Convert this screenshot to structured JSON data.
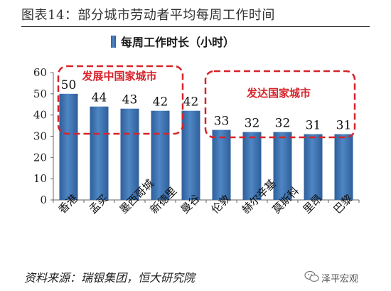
{
  "figure_title": "图表14：部分城市劳动者平均每周工作时间",
  "source": "资料来源：瑞银集团，恒大研究院",
  "watermark": "泽平宏观",
  "colors": {
    "bar": "#4f86c4",
    "bar_dark": "#2e5f9a",
    "annotation": "#d8232a",
    "axis": "#666666"
  },
  "icons": [
    "wechat-icon"
  ],
  "chart_data": {
    "type": "bar",
    "categories": [
      "香港",
      "孟买",
      "墨西哥城",
      "新德里",
      "曼谷",
      "伦敦",
      "赫尔辛基",
      "莫斯科",
      "里昂",
      "巴黎"
    ],
    "series": [
      {
        "name": "每周工作时长（小时）",
        "values": [
          50,
          44,
          43,
          42,
          42,
          33,
          32,
          32,
          31,
          31
        ]
      }
    ],
    "ylim": [
      0,
      60
    ],
    "yticks": [
      0,
      10,
      20,
      30,
      40,
      50,
      60
    ],
    "legend_position": "top",
    "grid": false,
    "data_labels": true,
    "annotations": [
      {
        "text": "发展中国家城市",
        "categories": [
          "香港",
          "孟买",
          "墨西哥城",
          "新德里",
          "曼谷"
        ]
      },
      {
        "text": "发达国家城市",
        "categories": [
          "伦敦",
          "赫尔辛基",
          "莫斯科",
          "里昂",
          "巴黎"
        ]
      }
    ]
  }
}
